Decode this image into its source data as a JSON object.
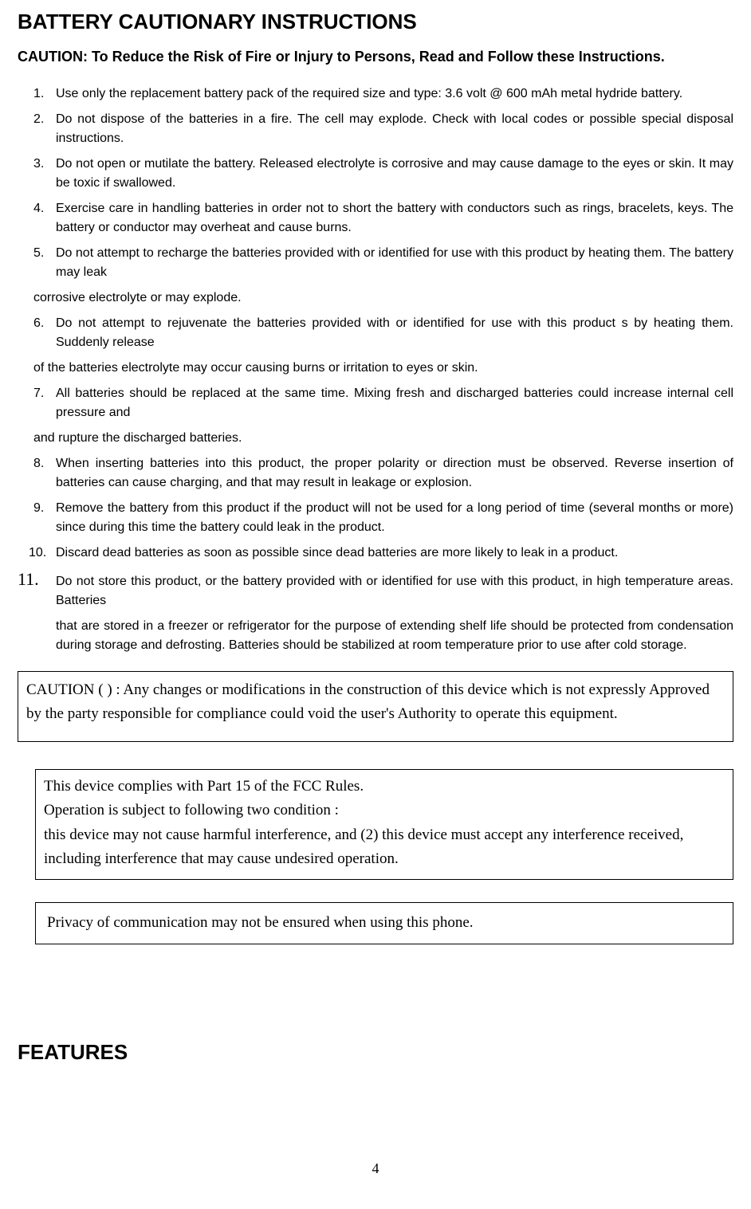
{
  "title": "BATTERY CAUTIONARY INSTRUCTIONS",
  "subtitle": "CAUTION: To Reduce the Risk of Fire or Injury to Persons, Read and Follow these Instructions.",
  "items": {
    "n1": "1.",
    "t1": "Use only the replacement battery pack of the required size and type: 3.6 volt @ 600 mAh metal hydride battery.",
    "n2": "2.",
    "t2": "Do not dispose of the batteries in a fire. The cell may explode. Check with local codes or possible special disposal instructions.",
    "n3": "3.",
    "t3": "Do not open or mutilate the battery. Released electrolyte is corrosive and may cause damage to the eyes or skin. It may be toxic if swallowed.",
    "n4": "4.",
    "t4": "Exercise care in handling batteries in order not to short the battery with conductors such as rings, bracelets, keys. The battery or conductor may overheat and cause burns.",
    "n5": "5.",
    "t5": "Do not attempt to recharge the batteries provided with or identified for use with this product by heating them. The battery may leak",
    "t5b": "corrosive electrolyte or may explode.",
    "n6": "6.",
    "t6": "Do not attempt to rejuvenate the batteries provided with or identified for use with this product s by heating them. Suddenly release",
    "t6b": "of the batteries electrolyte may occur causing burns or irritation to eyes or skin.",
    "n7": "7.",
    "t7": "All batteries should be replaced at the same time. Mixing fresh and discharged batteries could increase internal cell pressure and",
    "t7b": "and rupture the discharged batteries.",
    "n8": "8.",
    "t8": "When inserting batteries into this product, the proper polarity or direction must be observed. Reverse insertion of batteries can cause charging, and that may result in leakage or explosion.",
    "n9": "9.",
    "t9": "Remove the battery from this product if the product will not be used for a long period of time (several months or more) since during this time the battery could leak in the product.",
    "n10": "10.",
    "t10": "Discard dead batteries as soon as possible since dead batteries are more likely to leak in a product.",
    "n11": "11.",
    "t11": "Do not store this product, or the battery provided with or identified for use with this product, in high temperature areas. Batteries",
    "t11b": "that are stored in a freezer or refrigerator for the purpose of extending shelf life should be protected from condensation during storage and defrosting. Batteries should be stabilized at room temperature prior to use after cold storage."
  },
  "box1": "CAUTION (   )  : Any changes or modifications in the construction of this device which is not expressly Approved by the party responsible for compliance could void the user's Authority to operate this equipment.",
  "box2_l1": "This device complies with Part 15 of the FCC Rules.",
  "box2_l2": "Operation is subject to following two condition :",
  "box2_l3": "this device may not cause harmful interference, and (2) this device must accept any interference received, including interference that may cause undesired operation.",
  "box3": "Privacy of communication may not be ensured when using this phone.",
  "features": "FEATURES",
  "pagenum": "4"
}
